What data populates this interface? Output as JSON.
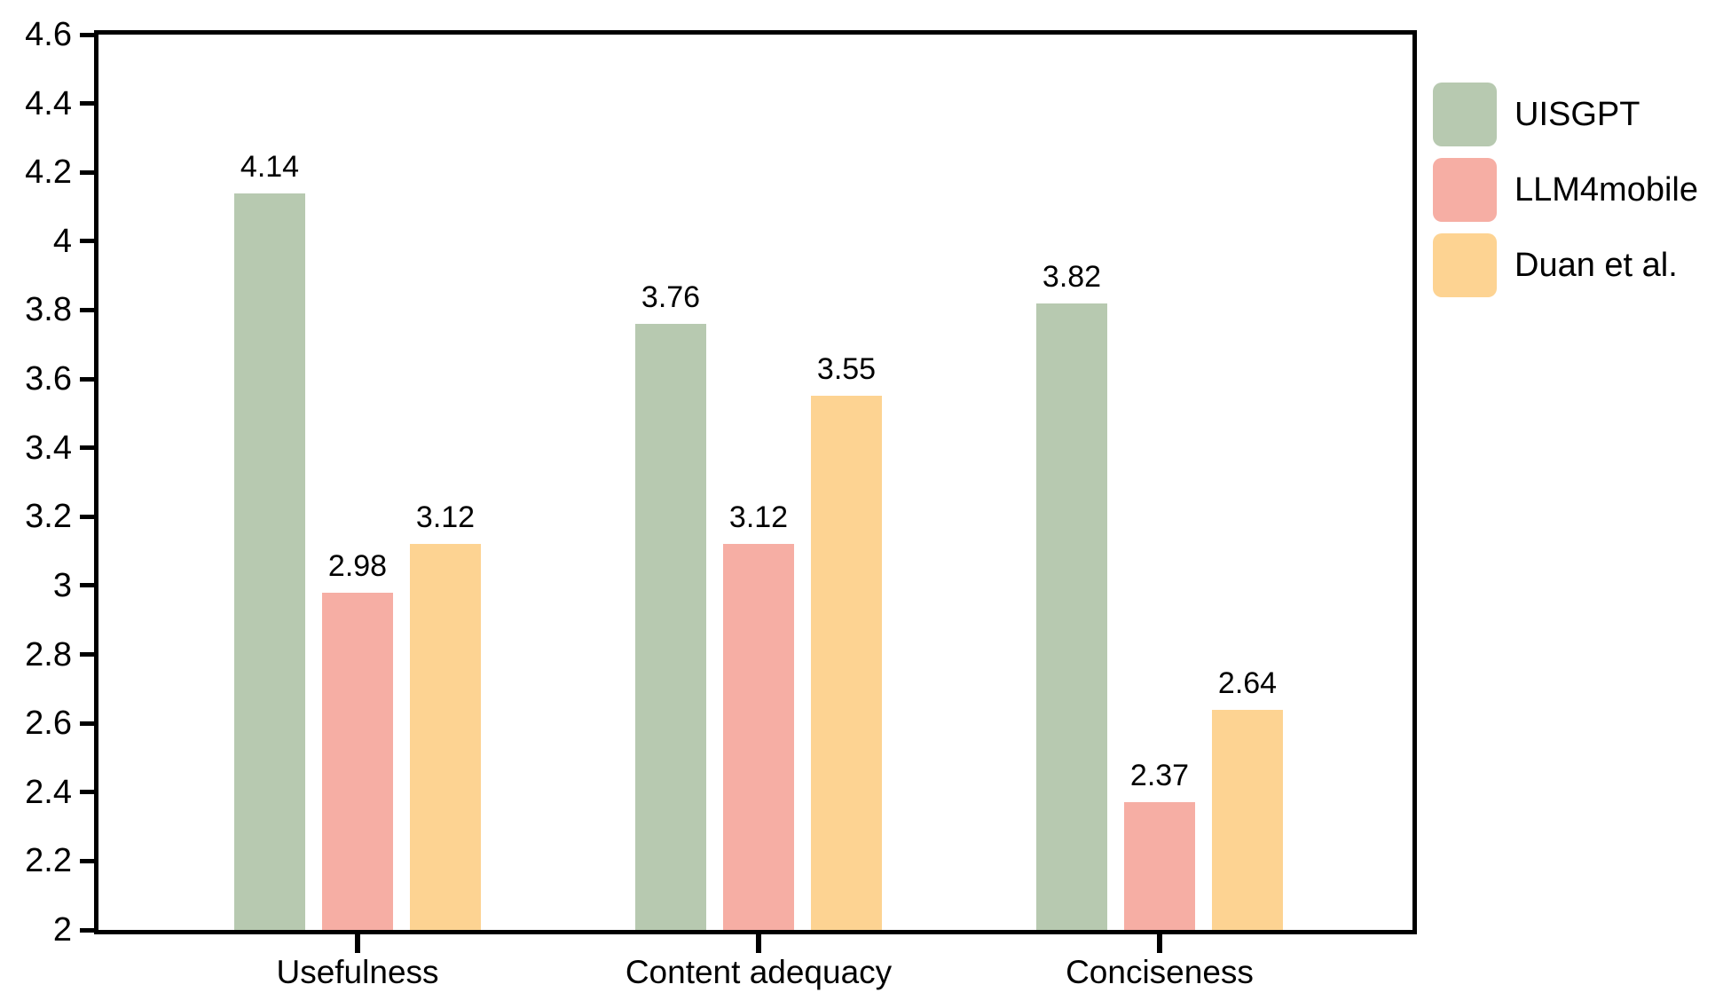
{
  "chart_data": {
    "type": "bar",
    "title": "",
    "xlabel": "",
    "ylabel": "",
    "categories": [
      "Usefulness",
      "Content adequacy",
      "Conciseness"
    ],
    "series": [
      {
        "name": "UISGPT",
        "color": "#b7c9b0",
        "values": [
          4.14,
          3.76,
          3.82
        ]
      },
      {
        "name": "LLM4mobile",
        "color": "#f6aea4",
        "values": [
          2.98,
          3.12,
          2.37
        ]
      },
      {
        "name": "Duan et al.",
        "color": "#fdd392",
        "values": [
          3.12,
          3.55,
          2.64
        ]
      }
    ],
    "value_labels": [
      [
        "4.14",
        "3.76",
        "3.82"
      ],
      [
        "2.98",
        "3.12",
        "2.37"
      ],
      [
        "3.12",
        "3.55",
        "2.64"
      ]
    ],
    "ylim": [
      2,
      4.6
    ],
    "ytick_step": 0.2,
    "yticks": [
      "2",
      "2.2",
      "2.4",
      "2.6",
      "2.8",
      "3",
      "3.2",
      "3.4",
      "3.6",
      "3.8",
      "4",
      "4.2",
      "4.4",
      "4.6"
    ],
    "grid": false,
    "legend_position": "right",
    "axis_color": "#000000",
    "background_color": "#ffffff"
  }
}
